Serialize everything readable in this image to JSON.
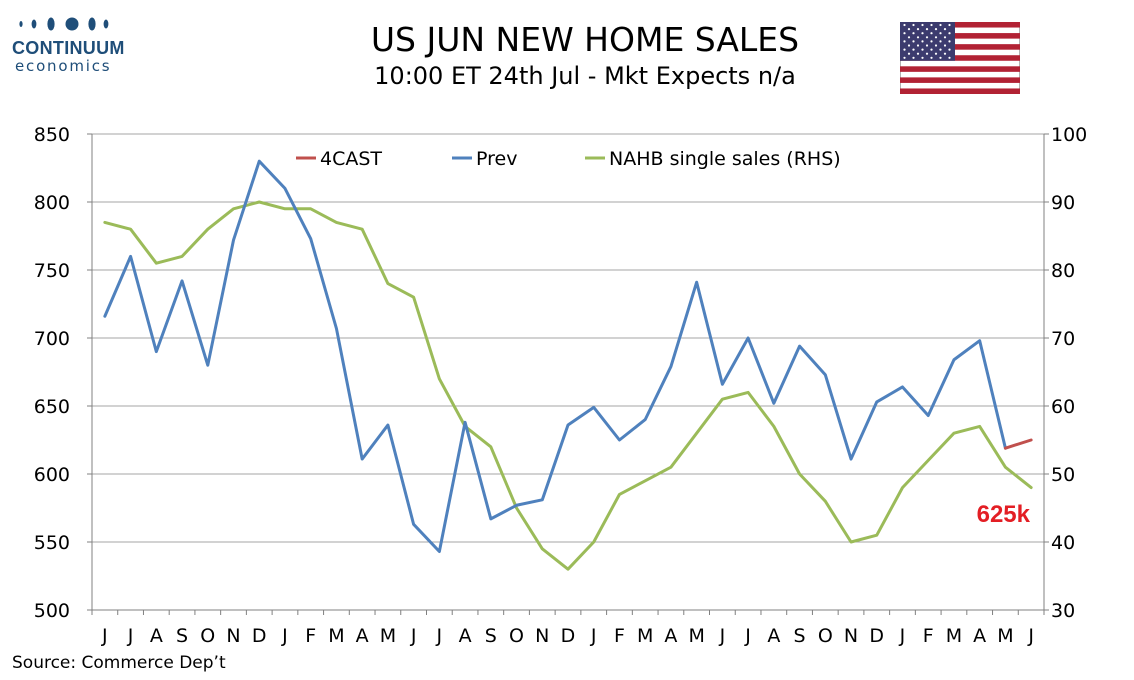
{
  "header": {
    "title": "US JUN NEW HOME SALES",
    "subtitle": "10:00 ET 24th Jul - Mkt Expects n/a"
  },
  "logo": {
    "word": "CONTINUUM",
    "sub": "economics"
  },
  "source": "Source: Commerce Dep’t",
  "colors": {
    "forecast": "#c0504d",
    "prev": "#4f81bd",
    "nahb": "#9bbb59",
    "callout": "#e31e24",
    "brand": "#1f4e79"
  },
  "chart_data": {
    "type": "line",
    "categories": [
      "J",
      "J",
      "A",
      "S",
      "O",
      "N",
      "D",
      "J",
      "F",
      "M",
      "A",
      "M",
      "J",
      "J",
      "A",
      "S",
      "O",
      "N",
      "D",
      "J",
      "F",
      "M",
      "A",
      "M",
      "J",
      "J",
      "A",
      "S",
      "O",
      "N",
      "D",
      "J",
      "F",
      "M",
      "A",
      "M",
      "J"
    ],
    "ylim": [
      500,
      850
    ],
    "yticks": [
      500,
      550,
      600,
      650,
      700,
      750,
      800,
      850
    ],
    "y2lim": [
      30,
      100
    ],
    "y2ticks": [
      30,
      40,
      50,
      60,
      70,
      80,
      90,
      100
    ],
    "grid": true,
    "legend_position": "top",
    "series": [
      {
        "name": "4CAST",
        "axis": "left",
        "values": [
          null,
          null,
          null,
          null,
          null,
          null,
          null,
          null,
          null,
          null,
          null,
          null,
          null,
          null,
          null,
          null,
          null,
          null,
          null,
          null,
          null,
          null,
          null,
          null,
          null,
          null,
          null,
          null,
          null,
          null,
          null,
          null,
          null,
          null,
          null,
          619,
          625
        ]
      },
      {
        "name": "Prev",
        "axis": "left",
        "values": [
          716,
          760,
          690,
          742,
          680,
          772,
          830,
          810,
          773,
          707,
          611,
          636,
          563,
          543,
          638,
          567,
          577,
          581,
          636,
          649,
          625,
          640,
          679,
          741,
          666,
          700,
          652,
          694,
          673,
          611,
          653,
          664,
          643,
          684,
          698,
          619,
          null
        ]
      },
      {
        "name": "NAHB single sales (RHS)",
        "axis": "right",
        "values": [
          87,
          86,
          81,
          82,
          86,
          89,
          90,
          89,
          89,
          87,
          86,
          78,
          76,
          64,
          57,
          54,
          45,
          39,
          36,
          40,
          47,
          49,
          51,
          56,
          61,
          62,
          57,
          50,
          46,
          40,
          41,
          48,
          52,
          56,
          57,
          51,
          48
        ]
      }
    ],
    "annotations": [
      {
        "text": "625k"
      }
    ]
  }
}
